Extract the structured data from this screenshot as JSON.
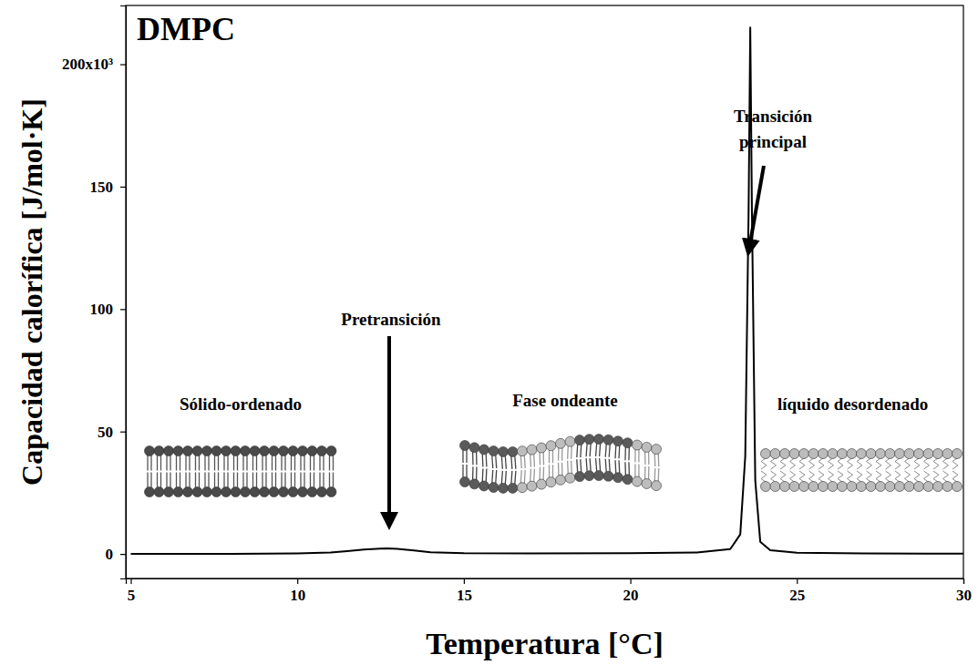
{
  "chart_data": {
    "type": "line",
    "title": "DMPC",
    "x_label": "Temperatura [°C]",
    "y_label": "Capacidad calorífica [J/mol·K]",
    "x": [
      5,
      8,
      10,
      11,
      11.5,
      12,
      12.5,
      12.7,
      13,
      13.5,
      14,
      15,
      17,
      20,
      22,
      23,
      23.3,
      23.45,
      23.55,
      23.6,
      23.65,
      23.75,
      23.9,
      24.2,
      25,
      27,
      30
    ],
    "values": [
      0,
      0,
      200,
      600,
      1200,
      1800,
      2200,
      2300,
      2100,
      1400,
      700,
      300,
      200,
      300,
      600,
      2000,
      8000,
      40000,
      140000,
      215000,
      140000,
      30000,
      5000,
      1500,
      500,
      200,
      100
    ],
    "color": "#000000",
    "xlim": [
      4.85,
      30
    ],
    "xticks": [
      5,
      10,
      15,
      20,
      25,
      30
    ],
    "ylim": [
      -10000,
      224000
    ],
    "yticks": [
      0,
      {
        "value": 50000,
        "label": "50"
      },
      {
        "value": 100000,
        "label": "100"
      },
      {
        "value": 150000,
        "label": "150"
      },
      {
        "value": 200000,
        "label": "200x10³"
      }
    ],
    "grid": false,
    "annotations": [
      "Pretransición",
      "Transición principal",
      "Sólido-ordenado",
      "Fase ondeante",
      "líquido desordenado"
    ]
  }
}
